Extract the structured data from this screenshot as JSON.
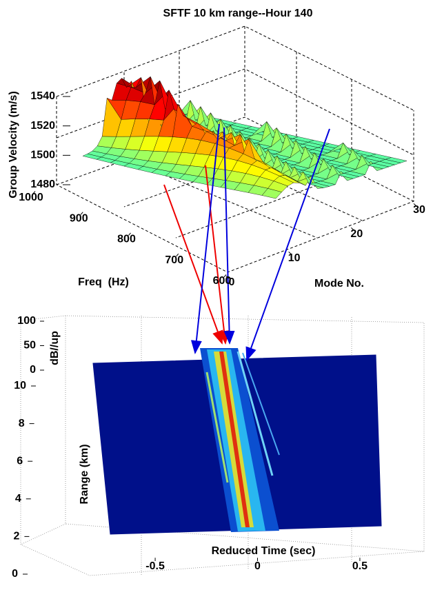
{
  "chart_data": [
    {
      "type": "surface",
      "title": "SFTF 10 km range--Hour 140",
      "x_label": "Freq  (Hz)",
      "y_label": "Mode No.",
      "z_label": "Group Velocity (m/s)",
      "xlim": [
        600,
        1000
      ],
      "xticks": [
        600,
        700,
        800,
        900,
        1000
      ],
      "ylim": [
        0,
        30
      ],
      "yticks": [
        0,
        10,
        20,
        30
      ],
      "zlim": [
        1480,
        1540
      ],
      "zticks": [
        1480,
        1500,
        1520,
        1540
      ]
    },
    {
      "type": "surface",
      "x_label": "Reduced Time (sec)",
      "y_label": "Range (km)",
      "z_label": "dB//up",
      "xlim": [
        -0.8,
        0.8
      ],
      "xticks": [
        -0.5,
        0,
        0.5
      ],
      "ylim": [
        0,
        10
      ],
      "yticks": [
        0,
        2,
        4,
        6,
        8,
        10
      ],
      "zlim": [
        0,
        100
      ],
      "zticks": [
        0,
        50,
        100
      ]
    }
  ]
}
